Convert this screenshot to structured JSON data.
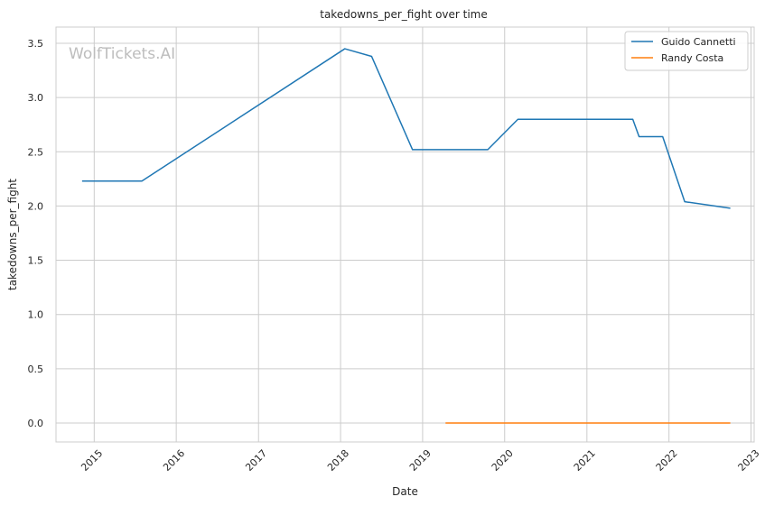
{
  "chart_data": {
    "type": "line",
    "title": "takedowns_per_fight over time",
    "xlabel": "Date",
    "ylabel": "takedowns_per_fight",
    "watermark": "WolfTickets.AI",
    "x_axis_type": "date",
    "xlim": [
      "2014-07-15",
      "2023-01-15"
    ],
    "ylim": [
      -0.175,
      3.65
    ],
    "x_ticks": [
      "2015",
      "2016",
      "2017",
      "2018",
      "2019",
      "2020",
      "2021",
      "2022",
      "2023"
    ],
    "y_ticks": [
      "0.0",
      "0.5",
      "1.0",
      "1.5",
      "2.0",
      "2.5",
      "3.0",
      "3.5"
    ],
    "grid": true,
    "legend_position": "top-right",
    "series": [
      {
        "name": "Guido Cannetti",
        "color": "#1f77b4",
        "points": [
          {
            "x": "2014-11-08",
            "y": 2.23
          },
          {
            "x": "2015-08-01",
            "y": 2.23
          },
          {
            "x": "2018-01-20",
            "y": 3.45
          },
          {
            "x": "2018-05-19",
            "y": 3.38
          },
          {
            "x": "2018-11-17",
            "y": 2.52
          },
          {
            "x": "2019-10-18",
            "y": 2.52
          },
          {
            "x": "2020-02-29",
            "y": 2.8
          },
          {
            "x": "2021-07-24",
            "y": 2.8
          },
          {
            "x": "2021-08-21",
            "y": 2.64
          },
          {
            "x": "2021-12-04",
            "y": 2.64
          },
          {
            "x": "2022-03-12",
            "y": 2.04
          },
          {
            "x": "2022-10-01",
            "y": 1.98
          }
        ]
      },
      {
        "name": "Randy Costa",
        "color": "#ff7f0e",
        "points": [
          {
            "x": "2019-04-13",
            "y": 0.0
          },
          {
            "x": "2022-10-01",
            "y": 0.0
          }
        ]
      }
    ]
  }
}
